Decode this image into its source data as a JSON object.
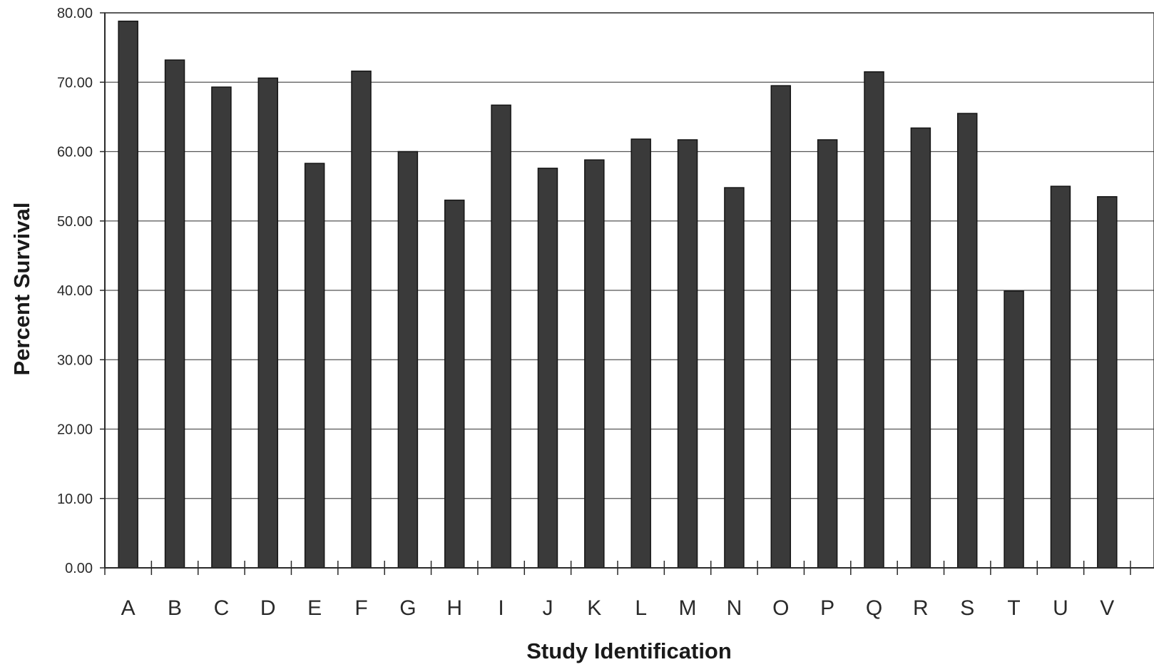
{
  "chart_data": {
    "type": "bar",
    "xlabel": "Study Identification",
    "ylabel": "Percent Survival",
    "ylim": [
      0,
      80
    ],
    "yticks": [
      "0.00",
      "10.00",
      "20.00",
      "30.00",
      "40.00",
      "50.00",
      "60.00",
      "70.00",
      "80.00"
    ],
    "grid": true,
    "legend": "none",
    "categories": [
      "A",
      "B",
      "C",
      "D",
      "E",
      "F",
      "G",
      "H",
      "I",
      "J",
      "K",
      "L",
      "M",
      "N",
      "O",
      "P",
      "Q",
      "R",
      "S",
      "T",
      "U",
      "V"
    ],
    "values": [
      78.8,
      73.2,
      69.3,
      70.6,
      58.3,
      71.6,
      60.0,
      53.0,
      66.7,
      57.6,
      58.8,
      61.8,
      61.7,
      54.8,
      69.5,
      61.7,
      71.5,
      63.4,
      65.5,
      39.9,
      55.0,
      53.5
    ],
    "colors": {
      "bar": "#3a3a3a",
      "bar_edge": "#151515",
      "grid": "#555555",
      "text": "#2a2a2a"
    }
  }
}
